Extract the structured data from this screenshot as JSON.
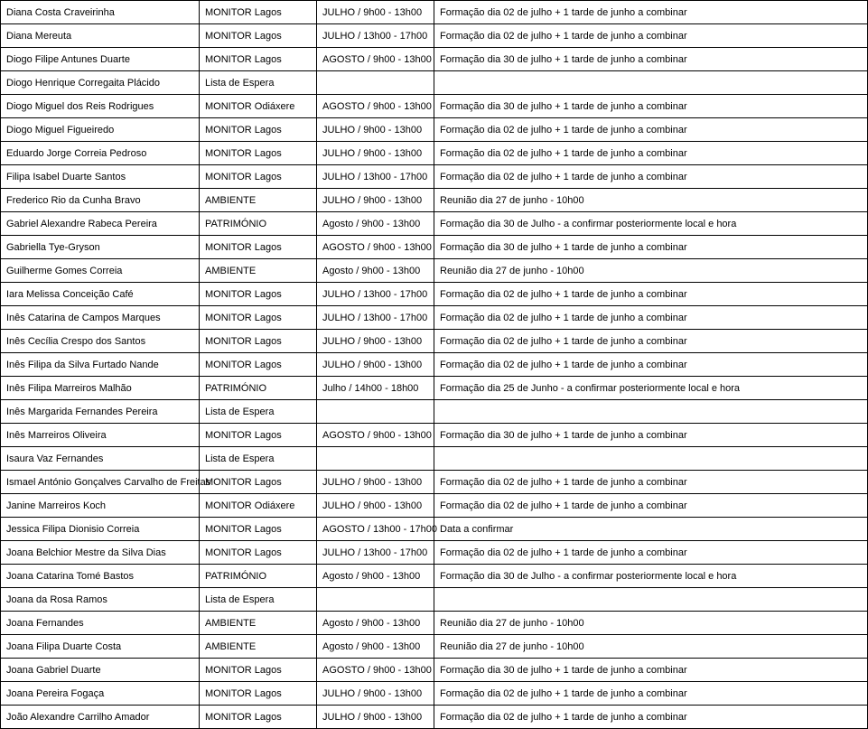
{
  "table": {
    "colWidths": [
      "220px",
      "130px",
      "130px",
      "480px"
    ],
    "rows": [
      [
        "Diana Costa Craveirinha",
        "MONITOR Lagos",
        "JULHO / 9h00 - 13h00",
        "Formação dia 02 de julho + 1 tarde de junho a combinar"
      ],
      [
        "Diana Mereuta",
        "MONITOR Lagos",
        "JULHO / 13h00 - 17h00",
        "Formação dia 02 de julho + 1 tarde de junho a combinar"
      ],
      [
        "Diogo Filipe Antunes Duarte",
        "MONITOR Lagos",
        "AGOSTO / 9h00 - 13h00",
        "Formação dia 30 de julho + 1 tarde de junho a combinar"
      ],
      [
        "Diogo Henrique Corregaita Plácido",
        "Lista de Espera",
        "",
        ""
      ],
      [
        "Diogo Miguel dos Reis Rodrigues",
        "MONITOR Odiáxere",
        "AGOSTO / 9h00 - 13h00",
        "Formação dia 30 de julho + 1 tarde de junho a combinar"
      ],
      [
        "Diogo Miguel Figueiredo",
        "MONITOR Lagos",
        "JULHO / 9h00 - 13h00",
        "Formação dia 02 de julho + 1 tarde de junho a combinar"
      ],
      [
        "Eduardo Jorge Correia Pedroso",
        "MONITOR Lagos",
        "JULHO / 9h00 - 13h00",
        "Formação dia 02 de julho + 1 tarde de junho a combinar"
      ],
      [
        "Filipa Isabel Duarte Santos",
        "MONITOR Lagos",
        "JULHO / 13h00 - 17h00",
        "Formação dia 02 de julho + 1 tarde de junho a combinar"
      ],
      [
        "Frederico Rio da Cunha Bravo",
        "AMBIENTE",
        "JULHO / 9h00 - 13h00",
        "Reunião dia 27 de junho - 10h00"
      ],
      [
        "Gabriel Alexandre Rabeca Pereira",
        "PATRIMÓNIO",
        "Agosto / 9h00 - 13h00",
        "Formação dia 30 de Julho - a confirmar posteriormente local e hora"
      ],
      [
        "Gabriella Tye-Gryson",
        "MONITOR Lagos",
        "AGOSTO / 9h00 - 13h00",
        "Formação dia 30 de julho + 1 tarde de junho a combinar"
      ],
      [
        "Guilherme Gomes Correia",
        "AMBIENTE",
        "Agosto / 9h00 - 13h00",
        "Reunião dia 27 de junho - 10h00"
      ],
      [
        "Iara Melissa Conceição Café",
        "MONITOR Lagos",
        "JULHO / 13h00 - 17h00",
        "Formação dia 02 de julho + 1 tarde de junho a combinar"
      ],
      [
        "Inês Catarina de Campos Marques",
        "MONITOR Lagos",
        "JULHO / 13h00 - 17h00",
        "Formação dia 02 de julho + 1 tarde de junho a combinar"
      ],
      [
        "Inês Cecília Crespo dos Santos",
        "MONITOR Lagos",
        "JULHO / 9h00 - 13h00",
        "Formação dia 02 de julho + 1 tarde de junho a combinar"
      ],
      [
        "Inês Filipa da Silva Furtado Nande",
        "MONITOR Lagos",
        "JULHO / 9h00 - 13h00",
        "Formação dia 02 de julho + 1 tarde de junho a combinar"
      ],
      [
        "Inês Filipa Marreiros Malhão",
        "PATRIMÓNIO",
        "Julho / 14h00 - 18h00",
        "Formação dia 25 de Junho - a confirmar posteriormente local e hora"
      ],
      [
        "Inês Margarida Fernandes Pereira",
        "Lista de Espera",
        "",
        ""
      ],
      [
        "Inês Marreiros Oliveira",
        "MONITOR Lagos",
        "AGOSTO / 9h00 - 13h00",
        "Formação dia 30 de julho + 1 tarde de junho a combinar"
      ],
      [
        "Isaura Vaz Fernandes",
        "Lista de Espera",
        "",
        ""
      ],
      [
        "Ismael António Gonçalves Carvalho de Freitas",
        "MONITOR Lagos",
        "JULHO / 9h00 - 13h00",
        "Formação dia 02 de julho + 1 tarde de junho a combinar"
      ],
      [
        "Janine Marreiros Koch",
        "MONITOR Odiáxere",
        "JULHO / 9h00 - 13h00",
        "Formação dia 02 de julho + 1 tarde de junho a combinar"
      ],
      [
        "Jessica Filipa Dionisio Correia",
        "MONITOR Lagos",
        "AGOSTO / 13h00 - 17h00",
        "Data a confirmar"
      ],
      [
        "Joana Belchior Mestre da Silva Dias",
        "MONITOR Lagos",
        "JULHO / 13h00 - 17h00",
        "Formação dia 02 de julho + 1 tarde de junho a combinar"
      ],
      [
        "Joana Catarina Tomé Bastos",
        "PATRIMÓNIO",
        "Agosto / 9h00 - 13h00",
        "Formação dia 30 de Julho - a confirmar posteriormente local e hora"
      ],
      [
        "Joana da Rosa Ramos",
        "Lista de Espera",
        "",
        ""
      ],
      [
        "Joana Fernandes",
        "AMBIENTE",
        "Agosto / 9h00 - 13h00",
        "Reunião dia 27 de junho - 10h00"
      ],
      [
        "Joana Filipa Duarte Costa",
        "AMBIENTE",
        "Agosto / 9h00 - 13h00",
        "Reunião dia 27 de junho - 10h00"
      ],
      [
        "Joana Gabriel Duarte",
        "MONITOR Lagos",
        "AGOSTO / 9h00 - 13h00",
        "Formação dia 30 de julho + 1 tarde de junho a combinar"
      ],
      [
        "Joana Pereira Fogaça",
        "MONITOR Lagos",
        "JULHO / 9h00 - 13h00",
        "Formação dia 02 de julho + 1 tarde de junho a combinar"
      ],
      [
        "João Alexandre Carrilho Amador",
        "MONITOR Lagos",
        "JULHO / 9h00 - 13h00",
        "Formação dia 02 de julho + 1 tarde de junho a combinar"
      ]
    ]
  }
}
